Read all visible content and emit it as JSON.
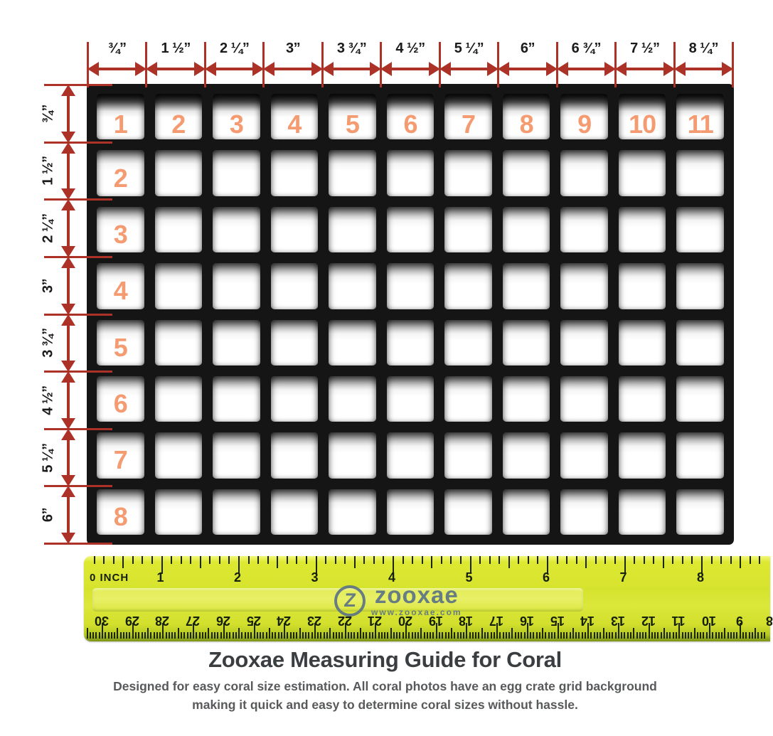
{
  "colors": {
    "arrow_red": "#ac3127",
    "cell_number_orange": "#f49b72",
    "grid_black": "#151515",
    "ruler_yellow": "#d6e32e",
    "ruler_tick_dark": "#1c2606",
    "logo_slate_blue": "#5d7486",
    "title_color": "#3b3e40",
    "subtitle_color": "#58595b"
  },
  "top_scale": {
    "labels": [
      "¾”",
      "1 ½”",
      "2 ¼”",
      "3”",
      "3 ¾”",
      "4 ½”",
      "5 ¼”",
      "6”",
      "6 ¾”",
      "7 ½”",
      "8 ¼”"
    ]
  },
  "left_scale": {
    "labels": [
      "¾”",
      "1 ½”",
      "2 ¼”",
      "3”",
      "3 ¾”",
      "4 ½”",
      "5 ¼”",
      "6”"
    ]
  },
  "grid": {
    "columns": 11,
    "rows": 8,
    "top_row_numbers": [
      "1",
      "2",
      "3",
      "4",
      "5",
      "6",
      "7",
      "8",
      "9",
      "10",
      "11"
    ],
    "left_col_numbers": [
      "2",
      "3",
      "4",
      "5",
      "6",
      "7",
      "8"
    ]
  },
  "ruler": {
    "inch_zero_label": "0 INCH",
    "inch_numbers": [
      "1",
      "2",
      "3",
      "4",
      "5",
      "6",
      "7",
      "8"
    ],
    "cm_numbers": [
      "30",
      "29",
      "28",
      "27",
      "26",
      "25",
      "24",
      "23",
      "22",
      "21",
      "20",
      "19",
      "18",
      "17",
      "16",
      "15",
      "14",
      "13",
      "12",
      "11",
      "10",
      "9",
      "8"
    ],
    "logo": {
      "glyph": "Z",
      "brand": "zooxae",
      "url": "www.zooxae.com"
    }
  },
  "caption": {
    "title": "Zooxae Measuring Guide for Coral",
    "subtitle_line1": "Designed for easy coral size estimation. All coral photos have an egg crate grid background",
    "subtitle_line2": "making it quick and easy to determine coral sizes without hassle."
  }
}
